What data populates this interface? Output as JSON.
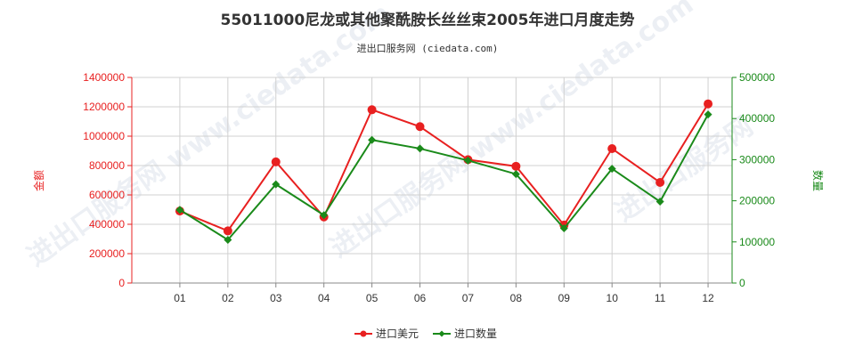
{
  "chart_data": {
    "type": "line",
    "title": "55011000尼龙或其他聚酰胺长丝丝束2005年进口月度走势",
    "subtitle": "进出口服务网 (ciedata.com)",
    "categories": [
      "01",
      "02",
      "03",
      "04",
      "05",
      "06",
      "07",
      "08",
      "09",
      "10",
      "11",
      "12"
    ],
    "y_left": {
      "label": "金额",
      "min": 0,
      "max": 1400000,
      "ticks": [
        "0",
        "200000",
        "400000",
        "600000",
        "800000",
        "1000000",
        "1200000",
        "1400000"
      ]
    },
    "y_right": {
      "label": "数量",
      "min": 0,
      "max": 500000,
      "ticks": [
        "0",
        "100000",
        "200000",
        "300000",
        "400000",
        "500000"
      ]
    },
    "series": [
      {
        "name": "进口美元",
        "axis": "left",
        "color": "#e82020",
        "values": [
          490000,
          355000,
          825000,
          450000,
          1180000,
          1065000,
          840000,
          795000,
          395000,
          915000,
          685000,
          1220000
        ]
      },
      {
        "name": "进口数量",
        "axis": "right",
        "color": "#1a8a1a",
        "values": [
          178000,
          105000,
          240000,
          165000,
          348000,
          327000,
          298000,
          265000,
          133000,
          278000,
          198000,
          410000
        ]
      }
    ],
    "grid": true,
    "legend_position": "bottom-center"
  }
}
